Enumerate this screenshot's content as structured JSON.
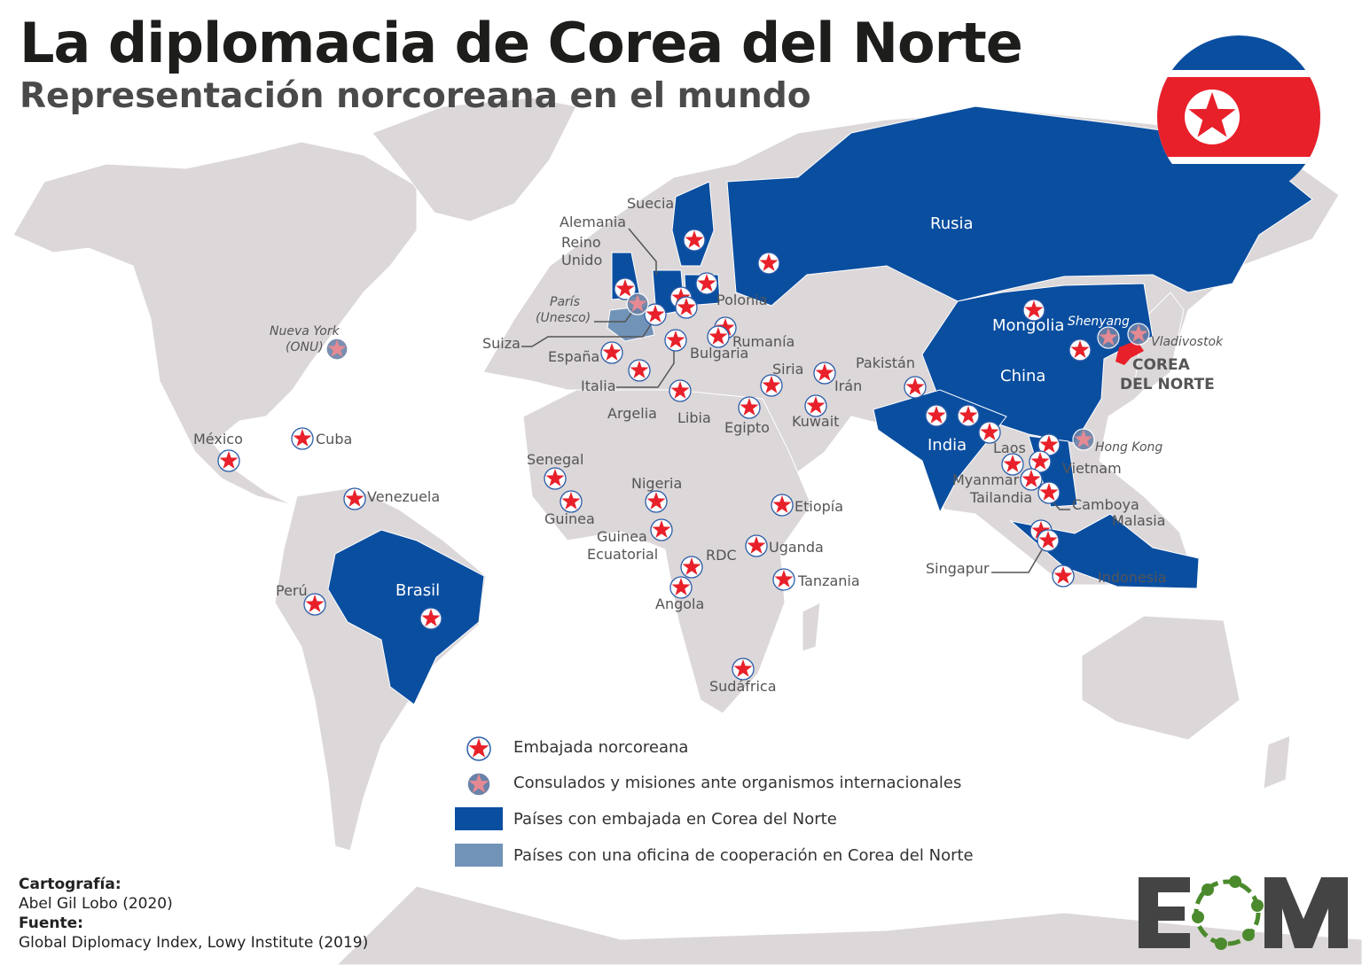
{
  "title": "La diplomacia de Corea del Norte",
  "subtitle": "Representación norcoreana en el mundo",
  "colors": {
    "land": "#dcd7d8",
    "embassy_country": "#0a4ea0",
    "cooperation_office_country": "#7293b8",
    "north_korea": "#e8202a",
    "embassy_star": "#e8202a",
    "consulate_star": "#e58a93",
    "logo_green": "#4b8a2d",
    "logo_dark": "#444444"
  },
  "labels": {
    "suecia": "Suecia",
    "alemania": "Alemania",
    "reino_unido_1": "Reino",
    "reino_unido_2": "Unido",
    "paris_1": "París",
    "paris_2": "(Unesco)",
    "suiza": "Suiza",
    "espana": "España",
    "italia": "Italia",
    "polonia": "Polonia",
    "rumania": "Rumanía",
    "bulgaria": "Bulgaria",
    "siria": "Siria",
    "iran": "Irán",
    "kuwait": "Kuwait",
    "egipto": "Egipto",
    "libia": "Libia",
    "argelia": "Argelia",
    "pakistan": "Pakistán",
    "rusia": "Rusia",
    "mongolia": "Mongolia",
    "shenyang": "Shenyang",
    "vladivostok": "Vladivostok",
    "corea_1": "COREA",
    "corea_2": "DEL NORTE",
    "china": "China",
    "india": "India",
    "hong_kong": "Hong Kong",
    "laos": "Laos",
    "vietnam": "Vietnam",
    "myanmar": "Myanmar",
    "tailandia": "Tailandia",
    "camboya": "Camboya",
    "malasia": "Malasia",
    "singapur": "Singapur",
    "indonesia": "Indonesia",
    "nueva_york_1": "Nueva York",
    "nueva_york_2": "(ONU)",
    "mexico": "México",
    "cuba": "Cuba",
    "venezuela": "Venezuela",
    "peru": "Perú",
    "brasil": "Brasil",
    "senegal": "Senegal",
    "guinea": "Guinea",
    "nigeria": "Nigeria",
    "guinea_ec_1": "Guinea",
    "guinea_ec_2": "Ecuatorial",
    "rdc": "RDC",
    "angola": "Angola",
    "etiopia": "Etiopía",
    "uganda": "Uganda",
    "tanzania": "Tanzania",
    "sudafrica": "Sudáfrica"
  },
  "legend": [
    {
      "marker": "embassy-star",
      "label": "Embajada norcoreana"
    },
    {
      "marker": "consulate-star",
      "label": "Consulados y misiones ante organismos internacionales"
    },
    {
      "marker": "swatch-dark-blue",
      "label": "Países con embajada en Corea del Norte"
    },
    {
      "marker": "swatch-light-blue",
      "label": "Países con una oficina de cooperación en Corea del Norte"
    }
  ],
  "credits": {
    "cartography_heading": "Cartografía:",
    "cartography": "Abel Gil Lobo (2020)",
    "source_heading": "Fuente:",
    "source": "Global Diplomacy Index, Lowy Institute (2019)"
  },
  "logo_text": "EOM"
}
